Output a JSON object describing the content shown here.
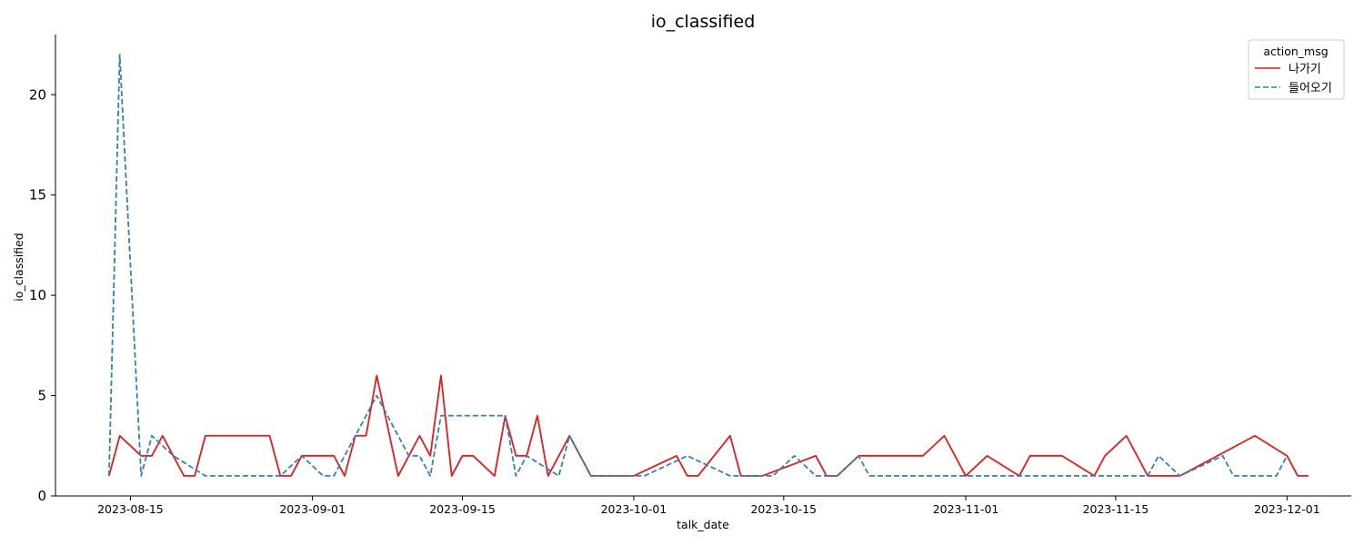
{
  "chart_data": {
    "type": "line",
    "title": "io_classified",
    "xlabel": "talk_date",
    "ylabel": "io_classified",
    "x_axis_type": "date",
    "xlim": [
      "2023-08-08",
      "2023-12-07"
    ],
    "ylim": [
      0,
      23
    ],
    "x_tick_labels": [
      "2023-08-15",
      "2023-09-01",
      "2023-09-15",
      "2023-10-01",
      "2023-10-15",
      "2023-11-01",
      "2023-11-15",
      "2023-12-01"
    ],
    "y_ticks": [
      0,
      5,
      10,
      15,
      20
    ],
    "y_tick_labels": [
      "0",
      "5",
      "10",
      "15",
      "20"
    ],
    "grid": false,
    "legend": {
      "title": "action_msg",
      "placement": "top-right"
    },
    "series": [
      {
        "name": "나가기",
        "color": "#e41a1c",
        "style": "solid",
        "points": [
          [
            "2023-08-13",
            1
          ],
          [
            "2023-08-14",
            3
          ],
          [
            "2023-08-16",
            2
          ],
          [
            "2023-08-17",
            2
          ],
          [
            "2023-08-18",
            3
          ],
          [
            "2023-08-20",
            1
          ],
          [
            "2023-08-21",
            1
          ],
          [
            "2023-08-22",
            3
          ],
          [
            "2023-08-28",
            3
          ],
          [
            "2023-08-29",
            1
          ],
          [
            "2023-08-30",
            1
          ],
          [
            "2023-08-31",
            2
          ],
          [
            "2023-09-03",
            2
          ],
          [
            "2023-09-04",
            1
          ],
          [
            "2023-09-05",
            3
          ],
          [
            "2023-09-06",
            3
          ],
          [
            "2023-09-07",
            6
          ],
          [
            "2023-09-09",
            1
          ],
          [
            "2023-09-11",
            3
          ],
          [
            "2023-09-12",
            2
          ],
          [
            "2023-09-13",
            6
          ],
          [
            "2023-09-14",
            1
          ],
          [
            "2023-09-15",
            2
          ],
          [
            "2023-09-16",
            2
          ],
          [
            "2023-09-18",
            1
          ],
          [
            "2023-09-19",
            4
          ],
          [
            "2023-09-20",
            2
          ],
          [
            "2023-09-21",
            2
          ],
          [
            "2023-09-22",
            4
          ],
          [
            "2023-09-23",
            1
          ],
          [
            "2023-09-25",
            3
          ],
          [
            "2023-09-27",
            1
          ],
          [
            "2023-10-01",
            1
          ],
          [
            "2023-10-05",
            2
          ],
          [
            "2023-10-06",
            1
          ],
          [
            "2023-10-07",
            1
          ],
          [
            "2023-10-10",
            3
          ],
          [
            "2023-10-11",
            1
          ],
          [
            "2023-10-13",
            1
          ],
          [
            "2023-10-18",
            2
          ],
          [
            "2023-10-19",
            1
          ],
          [
            "2023-10-20",
            1
          ],
          [
            "2023-10-22",
            2
          ],
          [
            "2023-10-28",
            2
          ],
          [
            "2023-10-30",
            3
          ],
          [
            "2023-11-01",
            1
          ],
          [
            "2023-11-03",
            2
          ],
          [
            "2023-11-06",
            1
          ],
          [
            "2023-11-07",
            2
          ],
          [
            "2023-11-10",
            2
          ],
          [
            "2023-11-13",
            1
          ],
          [
            "2023-11-14",
            2
          ],
          [
            "2023-11-16",
            3
          ],
          [
            "2023-11-18",
            1
          ],
          [
            "2023-11-21",
            1
          ],
          [
            "2023-11-28",
            3
          ],
          [
            "2023-12-01",
            2
          ],
          [
            "2023-12-02",
            1
          ],
          [
            "2023-12-03",
            1
          ]
        ]
      },
      {
        "name": "들어오기",
        "color": "#377eb8",
        "style": "dashed",
        "points": [
          [
            "2023-08-13",
            1
          ],
          [
            "2023-08-14",
            22
          ],
          [
            "2023-08-16",
            1
          ],
          [
            "2023-08-17",
            3
          ],
          [
            "2023-08-19",
            2
          ],
          [
            "2023-08-22",
            1
          ],
          [
            "2023-08-29",
            1
          ],
          [
            "2023-08-31",
            2
          ],
          [
            "2023-09-02",
            1
          ],
          [
            "2023-09-03",
            1
          ],
          [
            "2023-09-07",
            5
          ],
          [
            "2023-09-10",
            2
          ],
          [
            "2023-09-11",
            2
          ],
          [
            "2023-09-12",
            1
          ],
          [
            "2023-09-13",
            4
          ],
          [
            "2023-09-19",
            4
          ],
          [
            "2023-09-20",
            1
          ],
          [
            "2023-09-21",
            2
          ],
          [
            "2023-09-24",
            1
          ],
          [
            "2023-09-25",
            3
          ],
          [
            "2023-09-27",
            1
          ],
          [
            "2023-10-02",
            1
          ],
          [
            "2023-10-06",
            2
          ],
          [
            "2023-10-10",
            1
          ],
          [
            "2023-10-14",
            1
          ],
          [
            "2023-10-16",
            2
          ],
          [
            "2023-10-18",
            1
          ],
          [
            "2023-10-20",
            1
          ],
          [
            "2023-10-22",
            2
          ],
          [
            "2023-10-23",
            1
          ],
          [
            "2023-11-18",
            1
          ],
          [
            "2023-11-19",
            2
          ],
          [
            "2023-11-21",
            1
          ],
          [
            "2023-11-25",
            2
          ],
          [
            "2023-11-26",
            1
          ],
          [
            "2023-11-30",
            1
          ],
          [
            "2023-12-01",
            2
          ]
        ]
      }
    ]
  }
}
